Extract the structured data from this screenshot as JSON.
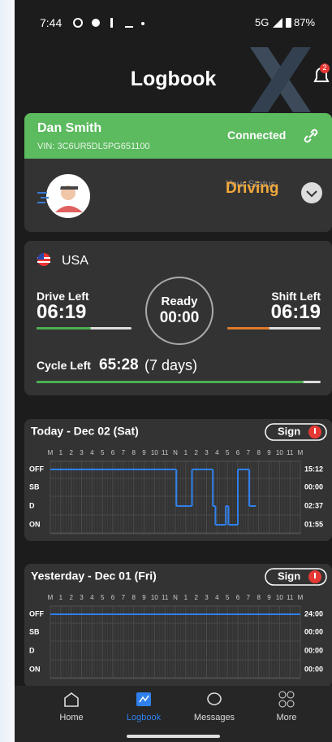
{
  "status_bar": {
    "time": "7:44",
    "network": "5G",
    "battery": "87%"
  },
  "header": {
    "title": "Logbook",
    "notification_count": "2"
  },
  "vehicle_card": {
    "driver": "Dan Smith",
    "vin": "VIN: 3C6UR5DL5PG651100",
    "connection": "Connected",
    "status_label": "Your Status",
    "status": "Driving"
  },
  "hos_card": {
    "country": "USA",
    "drive_left": {
      "label": "Drive Left",
      "value": "06:19",
      "progress": 57
    },
    "ready": {
      "label": "Ready",
      "value": "00:00"
    },
    "shift_left": {
      "label": "Shift Left",
      "value": "06:19",
      "progress": 45
    },
    "cycle_left": {
      "label": "Cycle Left",
      "value": "65:28",
      "days": "(7 days)",
      "progress": 94
    }
  },
  "logs": [
    {
      "title": "Today - Dec 02 (Sat)",
      "sign": "Sign",
      "hour_labels": [
        "M",
        "1",
        "2",
        "3",
        "4",
        "5",
        "6",
        "7",
        "8",
        "9",
        "10",
        "11",
        "N",
        "1",
        "2",
        "3",
        "4",
        "5",
        "6",
        "7",
        "8",
        "9",
        "10",
        "11",
        "M"
      ],
      "statuses": [
        "OFF",
        "SB",
        "D",
        "ON"
      ],
      "totals": [
        "15:12",
        "00:00",
        "02:37",
        "01:55"
      ],
      "segments": [
        {
          "status": 0,
          "start": 0,
          "end": 12.1
        },
        {
          "status": 2,
          "start": 12.1,
          "end": 13.6
        },
        {
          "status": 0,
          "start": 13.6,
          "end": 15.6
        },
        {
          "status": 2,
          "start": 15.6,
          "end": 15.85
        },
        {
          "status": 3,
          "start": 15.85,
          "end": 16.85
        },
        {
          "status": 2,
          "start": 16.85,
          "end": 17.1
        },
        {
          "status": 3,
          "start": 17.1,
          "end": 18.0
        },
        {
          "status": 0,
          "start": 18.0,
          "end": 19.1
        },
        {
          "status": 2,
          "start": 19.1,
          "end": 19.73
        }
      ]
    },
    {
      "title": "Yesterday -  Dec 01 (Fri)",
      "sign": "Sign",
      "hour_labels": [
        "M",
        "1",
        "2",
        "3",
        "4",
        "5",
        "6",
        "7",
        "8",
        "9",
        "10",
        "11",
        "N",
        "1",
        "2",
        "3",
        "4",
        "5",
        "6",
        "7",
        "8",
        "9",
        "10",
        "11",
        "M"
      ],
      "statuses": [
        "OFF",
        "SB",
        "D",
        "ON"
      ],
      "totals": [
        "24:00",
        "00:00",
        "00:00",
        "00:00"
      ],
      "segments": [
        {
          "status": 0,
          "start": 0,
          "end": 24
        }
      ]
    }
  ],
  "nav": [
    "Home",
    "Logbook",
    "Messages",
    "More"
  ]
}
